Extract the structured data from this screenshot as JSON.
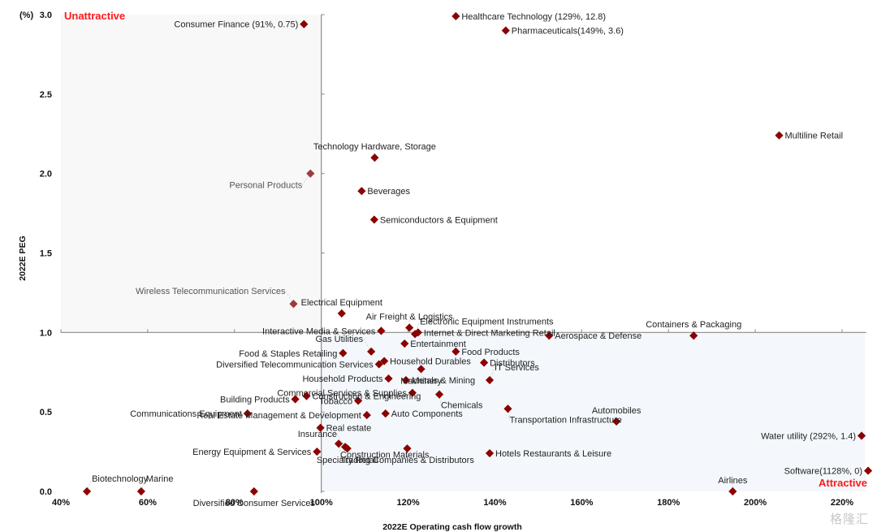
{
  "chart_data": {
    "type": "scatter",
    "title": "",
    "xlabel": "2022E Operating cash flow growth",
    "ylabel": "2022E PEG",
    "y_unit_label": "(%)",
    "xlim": [
      40,
      225
    ],
    "ylim": [
      0,
      3.0
    ],
    "x_ticks": [
      40,
      60,
      80,
      100,
      120,
      140,
      160,
      180,
      200,
      220
    ],
    "x_tick_labels": [
      "40%",
      "60%",
      "80%",
      "100%",
      "120%",
      "140%",
      "160%",
      "180%",
      "200%",
      "220%"
    ],
    "y_ticks": [
      0,
      0.5,
      1.0,
      1.5,
      2.0,
      2.5,
      3.0
    ],
    "y_tick_labels": [
      "0.0",
      "0.5",
      "1.0",
      "1.5",
      "2.0",
      "2.5",
      "3.0"
    ],
    "crosshair": {
      "x": 100,
      "y": 1.0
    },
    "quadrant_labels": {
      "top_left": "Unattractive",
      "bottom_right": "Attractive"
    },
    "marker_color": "#8b0000",
    "marker_color_light": "#9e3a3a",
    "quadrant_fill_top_left": "#f8f8f8",
    "quadrant_fill_bottom_right": "#f4f8fc",
    "grid": false,
    "points": [
      {
        "name": "Consumer Finance (91%, 0.75)",
        "x": 96,
        "y": 2.94,
        "clipped": true,
        "actual": [
          91,
          0.75
        ],
        "label_side": "left"
      },
      {
        "name": "Healthcare Technology (129%, 12.8)",
        "x": 131,
        "y": 2.99,
        "clipped": true,
        "actual": [
          129,
          12.8
        ],
        "label_side": "right"
      },
      {
        "name": "Pharmaceuticals(149%, 3.6)",
        "x": 142.5,
        "y": 2.9,
        "clipped": true,
        "actual": [
          149,
          3.6
        ],
        "label_side": "right"
      },
      {
        "name": "Multiline Retail",
        "x": 205.5,
        "y": 2.24,
        "label_side": "right"
      },
      {
        "name": "Technology Hardware, Storage",
        "x": 112.3,
        "y": 2.1,
        "label_side": "above"
      },
      {
        "name": "Personal Products",
        "x": 97.5,
        "y": 2.0,
        "faded": true,
        "label_side": "below-left"
      },
      {
        "name": "Beverages",
        "x": 109.3,
        "y": 1.89,
        "label_side": "right"
      },
      {
        "name": "Semiconductors &  Equipment",
        "x": 112.2,
        "y": 1.71,
        "label_side": "right"
      },
      {
        "name": "Wireless Telecommunication Services",
        "x": 93.6,
        "y": 1.18,
        "faded": true,
        "label_side": "above-left"
      },
      {
        "name": "Electrical Equipment",
        "x": 104.7,
        "y": 1.12,
        "label_side": "above"
      },
      {
        "name": "Interactive Media & Services",
        "x": 113.8,
        "y": 1.01,
        "label_side": "left"
      },
      {
        "name": "Air Freight & Logistics",
        "x": 120.3,
        "y": 1.03,
        "label_side": "above"
      },
      {
        "name": "Electronic Equipment Instruments",
        "x": 121.6,
        "y": 0.99,
        "label_side": "above-right"
      },
      {
        "name": "Internet & Direct Marketing Retail",
        "x": 122.3,
        "y": 1.0,
        "label_side": "right"
      },
      {
        "name": "Aerospace & Defense",
        "x": 152.5,
        "y": 0.98,
        "label_side": "right"
      },
      {
        "name": "Containers & Packaging",
        "x": 185.8,
        "y": 0.98,
        "label_side": "above"
      },
      {
        "name": "Gas Utilities",
        "x": 111.5,
        "y": 0.88,
        "label_side": "above-left"
      },
      {
        "name": "Food & Staples Retailing",
        "x": 105,
        "y": 0.87,
        "label_side": "left"
      },
      {
        "name": "Entertainment",
        "x": 119.2,
        "y": 0.93,
        "label_side": "right"
      },
      {
        "name": "Food Products",
        "x": 131.0,
        "y": 0.88,
        "label_side": "right"
      },
      {
        "name": "Diversified Telecommunication Services",
        "x": 113.3,
        "y": 0.8,
        "label_side": "left"
      },
      {
        "name": "Household Durables",
        "x": 114.5,
        "y": 0.82,
        "label_side": "right"
      },
      {
        "name": "Distributors",
        "x": 137.5,
        "y": 0.81,
        "label_side": "right"
      },
      {
        "name": "Machinery",
        "x": 123.0,
        "y": 0.77,
        "label_side": "below"
      },
      {
        "name": "IT Services",
        "x": 138.8,
        "y": 0.7,
        "label_side": "above-right"
      },
      {
        "name": "Household Products",
        "x": 115.5,
        "y": 0.71,
        "label_side": "left"
      },
      {
        "name": "Metals & Mining",
        "x": 119.5,
        "y": 0.7,
        "label_side": "right"
      },
      {
        "name": "Commercial Services & Supplies",
        "x": 121.0,
        "y": 0.62,
        "label_side": "left"
      },
      {
        "name": "Chemicals",
        "x": 127.2,
        "y": 0.61,
        "label_side": "below-right"
      },
      {
        "name": "Building Products",
        "x": 94.0,
        "y": 0.58,
        "label_side": "left"
      },
      {
        "name": "Construction & Engineering",
        "x": 96.6,
        "y": 0.6,
        "label_side": "right"
      },
      {
        "name": "Tobacco",
        "x": 108.5,
        "y": 0.57,
        "label_side": "left"
      },
      {
        "name": "Transportation Infrastructure",
        "x": 143.0,
        "y": 0.52,
        "label_side": "below-right"
      },
      {
        "name": "Communications Equipment",
        "x": 83.0,
        "y": 0.49,
        "label_side": "left"
      },
      {
        "name": "Auto Components",
        "x": 114.8,
        "y": 0.49,
        "label_side": "right"
      },
      {
        "name": "Automobiles",
        "x": 168.0,
        "y": 0.44,
        "label_side": "above"
      },
      {
        "name": "Real Estate Management & Development",
        "x": 110.5,
        "y": 0.48,
        "label_side": "left"
      },
      {
        "name": "Real estate",
        "x": 99.8,
        "y": 0.4,
        "label_side": "right"
      },
      {
        "name": "Construction Materials",
        "x": 104.0,
        "y": 0.3,
        "label_side": "below-right"
      },
      {
        "name": "Insurance",
        "x": 105.5,
        "y": 0.28,
        "label_side": "above-left"
      },
      {
        "name": "Water utility (292%, 1.4)",
        "x": 224.5,
        "y": 0.35,
        "clipped": true,
        "actual": [
          292,
          1.4
        ],
        "label_side": "left"
      },
      {
        "name": "Energy Equipment & Services",
        "x": 99.0,
        "y": 0.25,
        "label_side": "left"
      },
      {
        "name": "Specialty Retail",
        "x": 106.0,
        "y": 0.27,
        "label_side": "below"
      },
      {
        "name": "Trading Companies & Distributors",
        "x": 119.8,
        "y": 0.27,
        "label_side": "below"
      },
      {
        "name": "Hotels Restaurants & Leisure",
        "x": 138.8,
        "y": 0.24,
        "label_side": "right"
      },
      {
        "name": "Software(1128%, 0)",
        "x": 226.0,
        "y": 0.13,
        "clipped": true,
        "actual": [
          1128,
          0
        ],
        "label_side": "left"
      },
      {
        "name": "Biotechnology",
        "x": 46.0,
        "y": 0.0,
        "label_side": "above-right"
      },
      {
        "name": "Marine",
        "x": 58.5,
        "y": 0.0,
        "label_side": "above-right"
      },
      {
        "name": "Diversified Consumer Services",
        "x": 84.5,
        "y": 0.0,
        "label_side": "below"
      },
      {
        "name": "Airlines",
        "x": 194.8,
        "y": 0.0,
        "label_side": "above"
      }
    ]
  },
  "watermark": "格隆汇"
}
